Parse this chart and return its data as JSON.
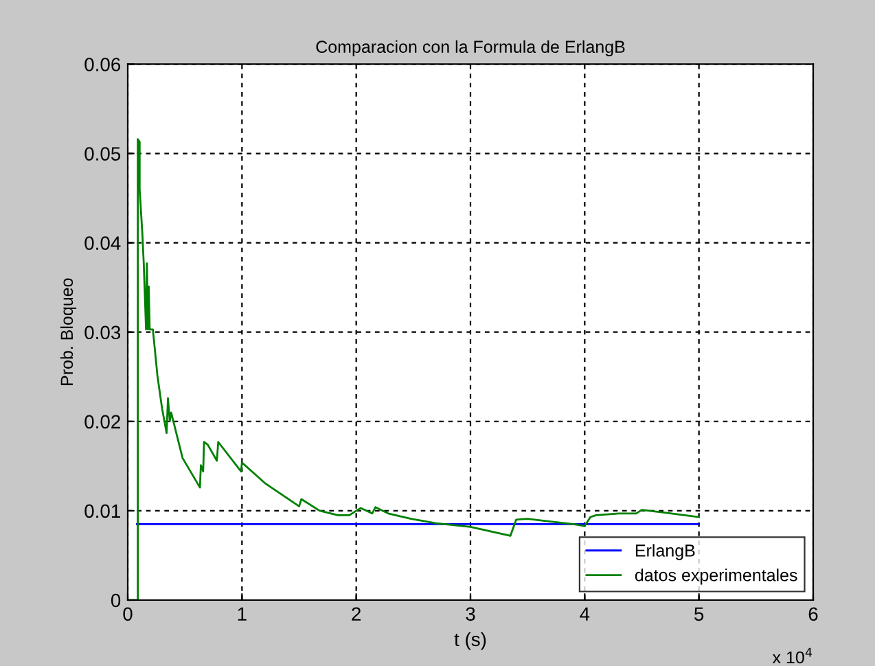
{
  "chart_data": {
    "type": "line",
    "title": "Comparacion con la Formula de ErlangB",
    "xlabel": "t (s)",
    "ylabel": "Prob. Bloqueo",
    "annotations": [
      "x 10$^{4}$"
    ],
    "series": [
      {
        "name": "ErlangB",
        "color": "#0000ff",
        "x": [
          0.08,
          5
        ],
        "values": [
          0.0085,
          0.0085
        ]
      },
      {
        "name": "datos experimentales",
        "color": "#008000",
        "x": [
          0,
          0.088,
          0.088,
          0.104,
          0.104,
          0.128,
          0.14,
          0.152,
          0.16,
          0.168,
          0.176,
          0.184,
          0.192,
          0.22,
          0.26,
          0.3,
          0.34,
          0.352,
          0.368,
          0.38,
          0.48,
          0.632,
          0.64,
          0.66,
          0.668,
          0.7,
          0.78,
          0.792,
          0.992,
          1,
          1.2,
          1.5,
          1.52,
          1.68,
          1.84,
          1.94,
          2,
          2.04,
          2.14,
          2.168,
          2.28,
          2.48,
          2.7,
          3,
          3.35,
          3.4,
          3.5,
          3.7,
          3.9,
          4,
          4.05,
          4.1,
          4.3,
          4.45,
          4.5,
          4.7,
          5
        ],
        "values": [
          0,
          0,
          0.0516,
          0.0513,
          0.046,
          0.041,
          0.0377,
          0.0333,
          0.0303,
          0.0377,
          0.0303,
          0.0351,
          0.0303,
          0.0303,
          0.0251,
          0.0215,
          0.0187,
          0.0226,
          0.02,
          0.021,
          0.0159,
          0.0126,
          0.0151,
          0.0144,
          0.0177,
          0.0174,
          0.0156,
          0.0177,
          0.0144,
          0.0154,
          0.0131,
          0.0105,
          0.0113,
          0.01,
          0.0095,
          0.0095,
          0.01,
          0.0103,
          0.0097,
          0.0104,
          0.0097,
          0.0091,
          0.0086,
          0.0082,
          0.0072,
          0.009,
          0.0091,
          0.0088,
          0.0085,
          0.0083,
          0.0093,
          0.0095,
          0.0097,
          0.0097,
          0.0101,
          0.0098,
          0.0093
        ]
      }
    ],
    "xlim": [
      0,
      6
    ],
    "xticks": [
      0,
      1,
      2,
      3,
      4,
      5,
      6
    ],
    "ylim": [
      0,
      0.06
    ],
    "yticks": [
      0,
      0.01,
      0.02,
      0.03,
      0.04,
      0.05,
      0.06
    ],
    "grid": true,
    "legend": "bottom right",
    "line_style": "solid",
    "marker": "none"
  }
}
